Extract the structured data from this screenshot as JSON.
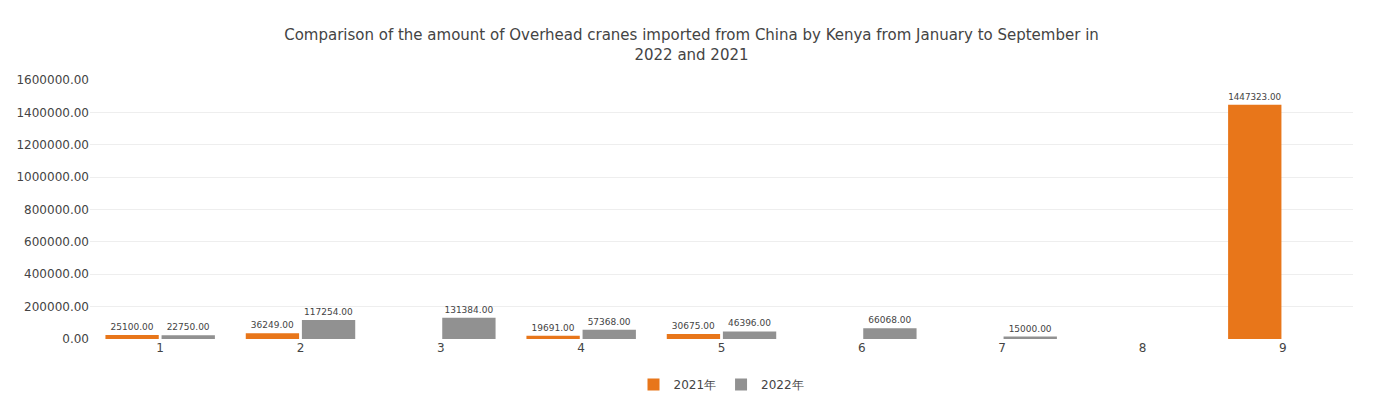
{
  "chart_data": {
    "type": "bar",
    "title": "Comparison of the amount of Overhead cranes imported from China by Kenya from January to September in\n2022 and 2021",
    "categories": [
      "1",
      "2",
      "3",
      "4",
      "5",
      "6",
      "7",
      "8",
      "9"
    ],
    "series": [
      {
        "name": "2021年",
        "color": "#E8761A",
        "values": [
          25100.0,
          36249.0,
          0.0,
          19691.0,
          30675.0,
          0.0,
          0.0,
          0.0,
          1447323.0
        ],
        "value_labels": [
          "25100.00",
          "36249.00",
          null,
          "19691.00",
          "30675.00",
          null,
          null,
          null,
          "1447323.00"
        ]
      },
      {
        "name": "2022年",
        "color": "#919191",
        "values": [
          22750.0,
          117254.0,
          131384.0,
          57368.0,
          46396.0,
          66068.0,
          15000.0,
          0.0,
          0.0
        ],
        "value_labels": [
          "22750.00",
          "117254.00",
          "131384.00",
          "57368.00",
          "46396.00",
          "66068.00",
          "15000.00",
          null,
          null
        ]
      }
    ],
    "ylim": [
      0,
      1600000
    ],
    "yticks": [
      {
        "value": 0,
        "label": "0.00"
      },
      {
        "value": 200000,
        "label": "200000.00"
      },
      {
        "value": 400000,
        "label": "400000.00"
      },
      {
        "value": 600000,
        "label": "600000.00"
      },
      {
        "value": 800000,
        "label": "800000.00"
      },
      {
        "value": 1000000,
        "label": "1000000.00"
      },
      {
        "value": 1200000,
        "label": "1200000.00"
      },
      {
        "value": 1400000,
        "label": "1400000.00"
      },
      {
        "value": 1600000,
        "label": "1600000.00"
      }
    ],
    "grid": true,
    "legend": "bottom",
    "data_labels": true
  }
}
